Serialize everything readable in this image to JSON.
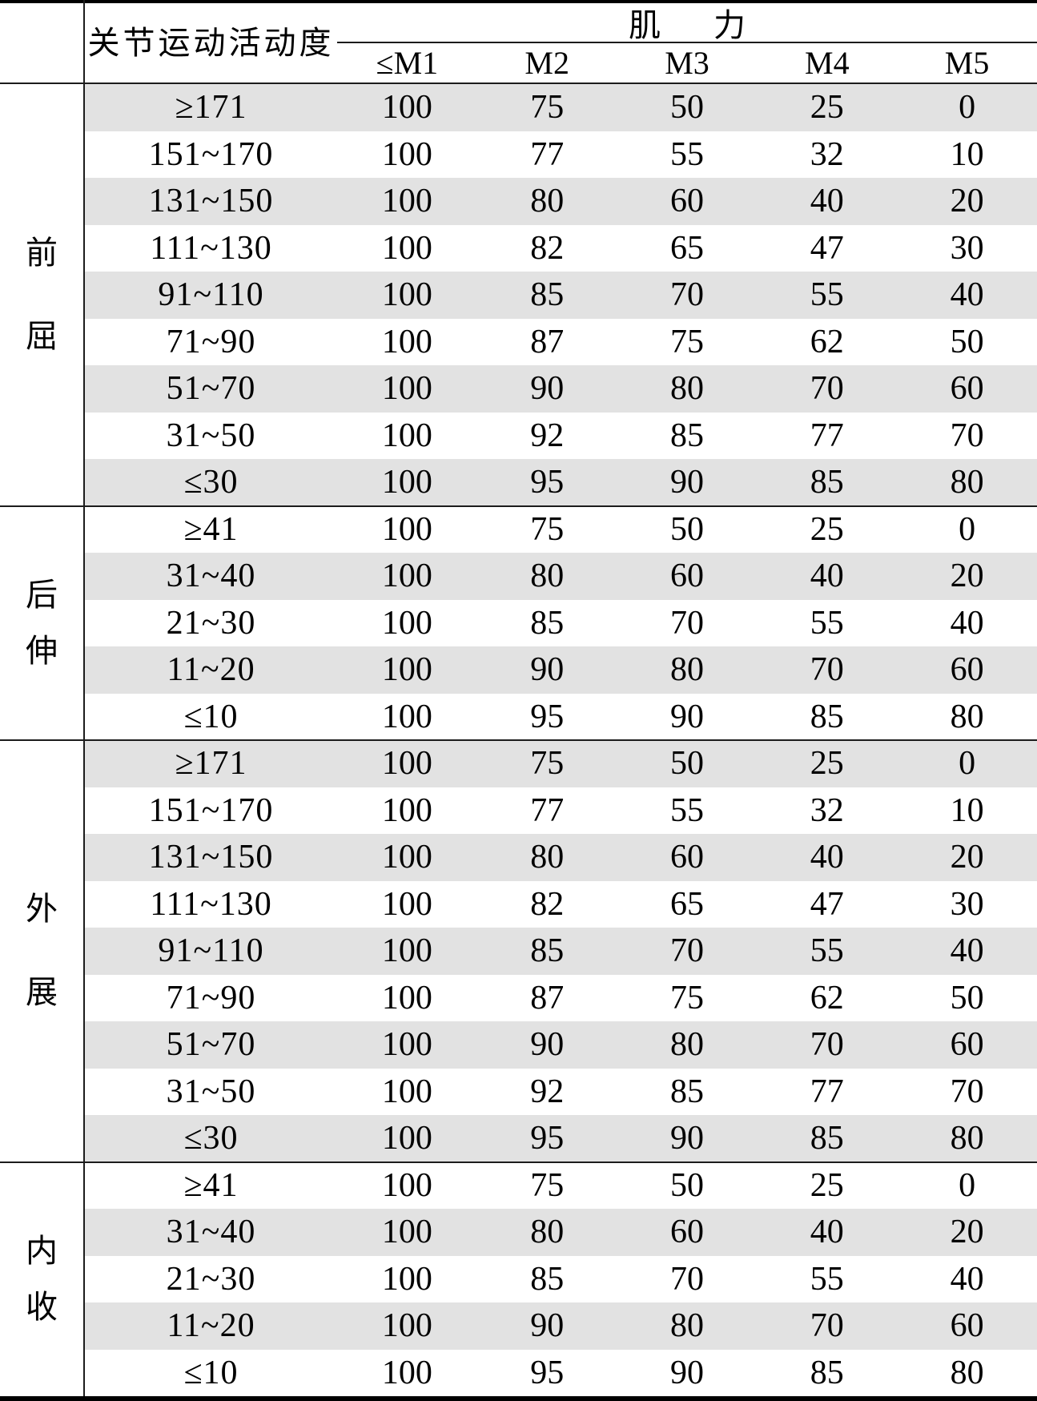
{
  "table": {
    "header": {
      "rom_label": "关节运动活动度",
      "strength_label": "肌力",
      "strength_chars": [
        "肌",
        "力"
      ],
      "strength_columns": [
        "≤M1",
        "M2",
        "M3",
        "M4",
        "M5"
      ]
    },
    "groups": [
      {
        "label": "前屈",
        "chars": [
          "前",
          "屈"
        ],
        "rows": [
          {
            "range": "≥171",
            "values": [
              "100",
              "75",
              "50",
              "25",
              "0"
            ]
          },
          {
            "range": "151~170",
            "values": [
              "100",
              "77",
              "55",
              "32",
              "10"
            ]
          },
          {
            "range": "131~150",
            "values": [
              "100",
              "80",
              "60",
              "40",
              "20"
            ]
          },
          {
            "range": "111~130",
            "values": [
              "100",
              "82",
              "65",
              "47",
              "30"
            ]
          },
          {
            "range": "91~110",
            "values": [
              "100",
              "85",
              "70",
              "55",
              "40"
            ]
          },
          {
            "range": "71~90",
            "values": [
              "100",
              "87",
              "75",
              "62",
              "50"
            ]
          },
          {
            "range": "51~70",
            "values": [
              "100",
              "90",
              "80",
              "70",
              "60"
            ]
          },
          {
            "range": "31~50",
            "values": [
              "100",
              "92",
              "85",
              "77",
              "70"
            ]
          },
          {
            "range": "≤30",
            "values": [
              "100",
              "95",
              "90",
              "85",
              "80"
            ]
          }
        ]
      },
      {
        "label": "后伸",
        "chars": [
          "后",
          "伸"
        ],
        "rows": [
          {
            "range": "≥41",
            "values": [
              "100",
              "75",
              "50",
              "25",
              "0"
            ]
          },
          {
            "range": "31~40",
            "values": [
              "100",
              "80",
              "60",
              "40",
              "20"
            ]
          },
          {
            "range": "21~30",
            "values": [
              "100",
              "85",
              "70",
              "55",
              "40"
            ]
          },
          {
            "range": "11~20",
            "values": [
              "100",
              "90",
              "80",
              "70",
              "60"
            ]
          },
          {
            "range": "≤10",
            "values": [
              "100",
              "95",
              "90",
              "85",
              "80"
            ]
          }
        ]
      },
      {
        "label": "外展",
        "chars": [
          "外",
          "展"
        ],
        "rows": [
          {
            "range": "≥171",
            "values": [
              "100",
              "75",
              "50",
              "25",
              "0"
            ]
          },
          {
            "range": "151~170",
            "values": [
              "100",
              "77",
              "55",
              "32",
              "10"
            ]
          },
          {
            "range": "131~150",
            "values": [
              "100",
              "80",
              "60",
              "40",
              "20"
            ]
          },
          {
            "range": "111~130",
            "values": [
              "100",
              "82",
              "65",
              "47",
              "30"
            ]
          },
          {
            "range": "91~110",
            "values": [
              "100",
              "85",
              "70",
              "55",
              "40"
            ]
          },
          {
            "range": "71~90",
            "values": [
              "100",
              "87",
              "75",
              "62",
              "50"
            ]
          },
          {
            "range": "51~70",
            "values": [
              "100",
              "90",
              "80",
              "70",
              "60"
            ]
          },
          {
            "range": "31~50",
            "values": [
              "100",
              "92",
              "85",
              "77",
              "70"
            ]
          },
          {
            "range": "≤30",
            "values": [
              "100",
              "95",
              "90",
              "85",
              "80"
            ]
          }
        ]
      },
      {
        "label": "内收",
        "chars": [
          "内",
          "收"
        ],
        "rows": [
          {
            "range": "≥41",
            "values": [
              "100",
              "75",
              "50",
              "25",
              "0"
            ]
          },
          {
            "range": "31~40",
            "values": [
              "100",
              "80",
              "60",
              "40",
              "20"
            ]
          },
          {
            "range": "21~30",
            "values": [
              "100",
              "85",
              "70",
              "55",
              "40"
            ]
          },
          {
            "range": "11~20",
            "values": [
              "100",
              "90",
              "80",
              "70",
              "60"
            ]
          },
          {
            "range": "≤10",
            "values": [
              "100",
              "95",
              "90",
              "85",
              "80"
            ]
          }
        ]
      }
    ]
  },
  "colors": {
    "stripe": "#e2e2e2",
    "thin_line": "#1c1c1c",
    "thick_border": "#000000",
    "background": "#ffffff",
    "text": "#000000"
  },
  "layout_values": {
    "rows_per_major_group": "9",
    "rows_per_minor_group": "5"
  }
}
